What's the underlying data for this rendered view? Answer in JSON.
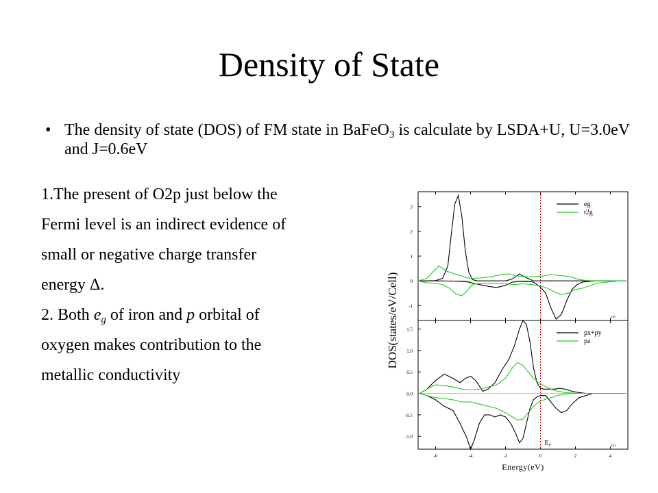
{
  "slide": {
    "title": "Density of State",
    "bullet": {
      "symbol": "•",
      "text_a": "The density of state (DOS) of FM  state in BaFeO",
      "sub": "3",
      "text_b": " is calculate by LSDA+U, U=3.0eV and J=0.6eV"
    },
    "lines": [
      {
        "parts": [
          "1.The present of  O2p  just below the"
        ]
      },
      {
        "parts": [
          "Fermi level is an indirect evidence of"
        ]
      },
      {
        "parts": [
          "small or negative charge transfer"
        ]
      },
      {
        "parts": [
          "energy ",
          "Δ",
          "."
        ]
      },
      {
        "parts": [
          "2. Both ",
          "e",
          "g",
          " of iron and ",
          "p",
          " orbital of"
        ]
      },
      {
        "parts": [
          "oxygen makes contribution to the"
        ]
      },
      {
        "parts": [
          "metallic conductivity"
        ]
      }
    ]
  },
  "chart_data": {
    "type": "line",
    "xlabel": "Energy(eV)",
    "ylabel": "DOS(states/eV/Cell)",
    "fermi_label": "E",
    "fermi_sub": "F",
    "fermi_energy": 0,
    "xlim": [
      -7,
      5
    ],
    "xticks": [
      -6,
      -4,
      -2,
      0,
      2,
      4
    ],
    "colors": {
      "black": "#000000",
      "green": "#22cc22",
      "fermi": "#cc0000"
    },
    "panels": [
      {
        "tag": "(a)",
        "ylim": [
          -1.6,
          3.6
        ],
        "yticks": [
          -1,
          0,
          1,
          2,
          3
        ],
        "series": [
          {
            "name": "eg",
            "color": "black",
            "x": [
              -6.9,
              -6.5,
              -6.0,
              -5.6,
              -5.3,
              -5.1,
              -4.9,
              -4.7,
              -4.5,
              -4.3,
              -4.1,
              -3.9,
              -3.6,
              -3.2,
              -2.8,
              -2.4,
              -2.0,
              -1.6,
              -1.2,
              -0.8,
              -0.4,
              0.0,
              0.4,
              0.8,
              1.2,
              1.6,
              2.0,
              2.5,
              3.0,
              3.5,
              4.0,
              4.5,
              4.9
            ],
            "y": [
              0,
              0,
              0.01,
              0.1,
              0.6,
              1.9,
              3.1,
              3.45,
              2.6,
              1.2,
              0.35,
              0.05,
              0,
              0,
              0,
              0,
              0,
              0.08,
              0.28,
              0.12,
              0,
              0,
              0,
              0,
              0,
              0,
              0,
              0,
              0,
              0,
              0,
              0,
              0
            ]
          },
          {
            "name": "",
            "color": "black",
            "x": [
              -6.9,
              -6.0,
              -5.0,
              -4.2,
              -3.5,
              -3.0,
              -2.5,
              -2.0,
              -1.6,
              -1.2,
              -0.8,
              -0.4,
              0.0,
              0.3,
              0.6,
              0.9,
              1.2,
              1.5,
              1.8,
              2.1,
              2.4,
              2.8,
              3.2,
              3.8,
              4.5,
              4.9
            ],
            "y": [
              0,
              0,
              -0.01,
              -0.04,
              -0.15,
              -0.22,
              -0.27,
              -0.18,
              -0.05,
              -0.03,
              -0.02,
              -0.05,
              -0.25,
              -0.5,
              -1.1,
              -1.55,
              -1.35,
              -0.8,
              -0.35,
              -0.15,
              -0.05,
              -0.02,
              0,
              0,
              0,
              0
            ]
          },
          {
            "name": "t2g",
            "color": "green",
            "x": [
              -6.9,
              -6.5,
              -6.1,
              -5.8,
              -5.4,
              -5.0,
              -4.6,
              -4.2,
              -3.8,
              -3.4,
              -3.0,
              -2.6,
              -2.2,
              -1.8,
              -1.4,
              -1.0,
              -0.6,
              -0.2,
              0.2,
              0.6,
              1.0,
              1.4,
              1.8,
              2.2,
              2.6,
              3.0,
              3.5,
              4.0,
              4.5,
              4.9
            ],
            "y": [
              0.02,
              0.1,
              0.4,
              0.6,
              0.4,
              0.3,
              0.22,
              0.12,
              0.1,
              0.12,
              0.15,
              0.2,
              0.25,
              0.28,
              0.2,
              0.18,
              0.15,
              0.18,
              0.2,
              0.25,
              0.22,
              0.2,
              0.15,
              0.05,
              0.02,
              0,
              0,
              0,
              0,
              0
            ]
          },
          {
            "name": "",
            "color": "green",
            "x": [
              -6.9,
              -6.5,
              -6.0,
              -5.6,
              -5.2,
              -4.8,
              -4.5,
              -4.2,
              -3.9,
              -3.5,
              -3.0,
              -2.5,
              -2.0,
              -1.5,
              -1.0,
              -0.5,
              0.0,
              0.4,
              0.8,
              1.2,
              1.6,
              2.0,
              2.4,
              2.8,
              3.2,
              3.8,
              4.5,
              4.9
            ],
            "y": [
              -0.02,
              -0.08,
              -0.1,
              -0.15,
              -0.3,
              -0.55,
              -0.6,
              -0.4,
              -0.15,
              -0.1,
              -0.1,
              -0.1,
              -0.12,
              -0.15,
              -0.12,
              -0.15,
              -0.2,
              -0.3,
              -0.45,
              -0.55,
              -0.5,
              -0.35,
              -0.3,
              -0.2,
              -0.1,
              -0.05,
              0,
              0
            ]
          }
        ]
      },
      {
        "tag": "(b)",
        "ylim": [
          -1.3,
          1.7
        ],
        "yticks": [
          -1.0,
          -0.5,
          0.0,
          0.5,
          1.0,
          1.5
        ],
        "ytick_labels": [
          "-1.0",
          "-0.5",
          "0.0",
          "0.5",
          "1.0",
          "1.5"
        ],
        "series": [
          {
            "name": "px+py",
            "color": "black",
            "x": [
              -6.9,
              -6.5,
              -6.0,
              -5.5,
              -5.0,
              -4.6,
              -4.3,
              -4.0,
              -3.7,
              -3.3,
              -3.0,
              -2.6,
              -2.2,
              -1.8,
              -1.5,
              -1.2,
              -1.0,
              -0.8,
              -0.6,
              -0.4,
              -0.2,
              0.0,
              0.2,
              0.5,
              0.8,
              1.1,
              1.4,
              1.8,
              2.2,
              2.6,
              3.0,
              3.5,
              4.0,
              4.5,
              4.9
            ],
            "y": [
              0,
              0.1,
              0.3,
              0.45,
              0.35,
              0.25,
              0.35,
              0.4,
              0.3,
              0.05,
              0.1,
              0.25,
              0.55,
              0.8,
              1.1,
              1.5,
              1.7,
              1.6,
              1.2,
              0.6,
              0.25,
              0.12,
              0.1,
              0.1,
              0.1,
              0.12,
              0.1,
              0.05,
              0.02,
              0,
              0,
              0,
              0,
              0,
              0
            ]
          },
          {
            "name": "",
            "color": "black",
            "x": [
              -6.9,
              -6.5,
              -6.0,
              -5.5,
              -5.0,
              -4.6,
              -4.2,
              -4.0,
              -3.8,
              -3.5,
              -3.2,
              -2.9,
              -2.6,
              -2.3,
              -2.0,
              -1.7,
              -1.4,
              -1.2,
              -1.0,
              -0.8,
              -0.6,
              -0.4,
              -0.2,
              0.0,
              0.3,
              0.6,
              0.9,
              1.2,
              1.5,
              1.8,
              2.2,
              2.6,
              3.0,
              3.5,
              4.0,
              4.5,
              4.9
            ],
            "y": [
              0,
              -0.05,
              -0.15,
              -0.3,
              -0.4,
              -0.7,
              -1.05,
              -1.3,
              -1.1,
              -0.7,
              -0.5,
              -0.5,
              -0.55,
              -0.5,
              -0.55,
              -0.7,
              -0.95,
              -1.15,
              -1.05,
              -0.7,
              -0.35,
              -0.15,
              -0.08,
              -0.05,
              -0.05,
              -0.2,
              -0.35,
              -0.45,
              -0.4,
              -0.25,
              -0.1,
              -0.05,
              0,
              0,
              0,
              0,
              0
            ]
          },
          {
            "name": "pz",
            "color": "green",
            "x": [
              -6.9,
              -6.5,
              -6.0,
              -5.5,
              -5.0,
              -4.5,
              -4.0,
              -3.5,
              -3.0,
              -2.5,
              -2.0,
              -1.6,
              -1.3,
              -1.0,
              -0.7,
              -0.4,
              -0.1,
              0.2,
              0.6,
              1.0,
              1.4,
              1.8,
              2.2,
              2.6,
              3.0,
              3.5,
              4.0,
              4.5,
              4.9
            ],
            "y": [
              0,
              0.1,
              0.2,
              0.18,
              0.15,
              0.1,
              0.08,
              0.1,
              0.15,
              0.2,
              0.35,
              0.6,
              0.72,
              0.65,
              0.5,
              0.35,
              0.25,
              0.18,
              0.1,
              0.05,
              0.02,
              0.01,
              0,
              0,
              0,
              0,
              0,
              0,
              0
            ]
          },
          {
            "name": "",
            "color": "green",
            "x": [
              -6.9,
              -6.5,
              -6.0,
              -5.5,
              -5.0,
              -4.5,
              -4.0,
              -3.5,
              -3.0,
              -2.5,
              -2.0,
              -1.6,
              -1.3,
              -1.0,
              -0.7,
              -0.4,
              -0.1,
              0.2,
              0.6,
              1.0,
              1.4,
              1.8,
              2.2,
              2.6,
              3.0,
              3.5,
              4.0,
              4.5,
              4.9
            ],
            "y": [
              0,
              -0.05,
              -0.1,
              -0.12,
              -0.15,
              -0.2,
              -0.2,
              -0.25,
              -0.3,
              -0.35,
              -0.45,
              -0.55,
              -0.62,
              -0.6,
              -0.45,
              -0.3,
              -0.2,
              -0.15,
              -0.1,
              -0.05,
              -0.02,
              0,
              0,
              0,
              0,
              0,
              0,
              0,
              0
            ]
          }
        ]
      }
    ]
  }
}
